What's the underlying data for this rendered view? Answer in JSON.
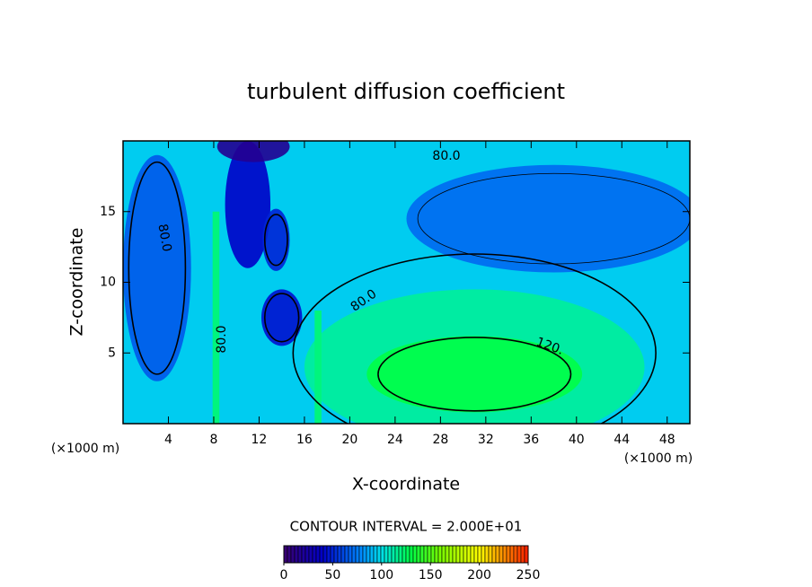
{
  "chart_data": {
    "type": "contour",
    "title": "turbulent diffusion coefficient",
    "x_label": "X-coordinate",
    "y_label": "Z-coordinate",
    "x_unit": "(×1000 m)",
    "xlim": [
      0,
      50
    ],
    "xticks": [
      4,
      8,
      12,
      16,
      20,
      24,
      28,
      32,
      36,
      40,
      44,
      48
    ],
    "ylim": [
      0,
      20
    ],
    "yticks": [
      5,
      10,
      15
    ],
    "region_values": [
      95,
      115,
      130,
      70,
      65,
      40,
      15,
      45,
      50,
      120,
      120
    ],
    "contour_labels": [
      {
        "value": 80,
        "label": "80.0"
      },
      {
        "value": 80,
        "label": "80.0"
      },
      {
        "value": 80,
        "label": "80.0"
      },
      {
        "value": 80,
        "label": "80.0"
      },
      {
        "value": 120,
        "label": "120."
      }
    ],
    "contour_interval_text": "CONTOUR INTERVAL = 2.000E+01",
    "colorbar_lim": [
      0,
      250
    ],
    "colorbar_ticks": [
      0,
      50,
      100,
      150,
      200,
      250
    ]
  }
}
